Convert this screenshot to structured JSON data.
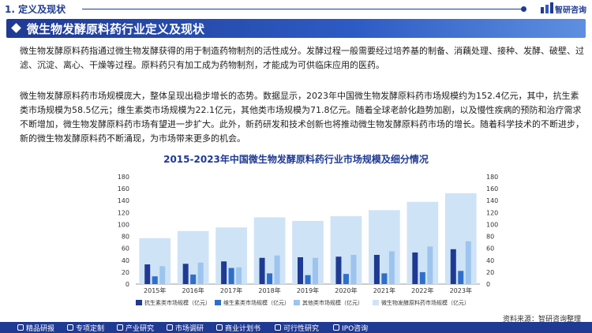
{
  "header": {
    "section_title": "1. 定义及现状",
    "brand": "智研咨询"
  },
  "banner": {
    "title": "微生物发酵原料药行业定义及现状"
  },
  "paragraphs": [
    "微生物发酵原料药指通过微生物发酵获得的用于制造药物制剂的活性成分。发酵过程一般需要经过培养基的制备、消藕处理、接种、发酵、破壁、过滤、沉淀、离心、干燥等过程。原料药只有加工成为药物制剂，才能成为可供临床应用的医药。",
    "微生物发酵原料药市场规模庞大，整体呈现出稳步增长的态势。数据显示，2023年中国微生物发酵原料药市场规模约为152.4亿元，其中，抗生素类市场规模为58.5亿元；维生素类市场规模为22.1亿元，其他类市场规模为71.8亿元。随着全球老龄化趋势加剧，以及慢性疾病的预防和治疗需求不断增加，微生物发酵原料药市场有望进一步扩大。此外，新药研发和技术创新也将推动微生物发酵原料药市场的增长。随着科学技术的不断进步，新的微生物发酵原料药不断涌现，为市场带来更多的机会。"
  ],
  "chart_data": {
    "type": "bar",
    "title": "2015-2023年中国微生物发酵原料药行业市场规模及细分情况",
    "categories": [
      "2015年",
      "2016年",
      "2017年",
      "2018年",
      "2019年",
      "2020年",
      "2021年",
      "2022年",
      "2023年"
    ],
    "series": [
      {
        "name": "抗生素类市场规模（亿元）",
        "axis": "left",
        "color": "#1f3a93",
        "values": [
          33,
          34,
          38,
          44,
          45,
          46,
          49,
          53,
          58.5
        ]
      },
      {
        "name": "维生素类市场规模（亿元）",
        "axis": "left",
        "color": "#2f6fc9",
        "values": [
          13,
          16,
          27,
          18,
          15,
          17,
          18,
          20,
          22.1
        ]
      },
      {
        "name": "其他类市场规模（亿元）",
        "axis": "left",
        "color": "#9cc4ee",
        "values": [
          30,
          36,
          28,
          48,
          44,
          49,
          55,
          63,
          71.8
        ]
      },
      {
        "name": "微生物发酵原料药市场规模（亿元）",
        "axis": "right",
        "color": "#cfe3f7",
        "values": [
          77,
          89,
          95,
          112,
          106,
          114,
          124,
          138,
          152.4
        ]
      }
    ],
    "ylim": [
      0,
      180
    ],
    "yticks": [
      0,
      20,
      40,
      60,
      80,
      100,
      120,
      140,
      160,
      180
    ],
    "ylim_right": [
      0,
      180
    ],
    "yticks_right": [
      0,
      20,
      40,
      60,
      80,
      100,
      120,
      140,
      160,
      180
    ],
    "grid": false,
    "legend_position": "bottom"
  },
  "source": "资料来源：智研咨询整理",
  "footer": {
    "items": [
      "精品研报",
      "专项定制",
      "产业研究",
      "市场调研",
      "商业计划书",
      "可行性研究",
      "IPO咨询"
    ]
  },
  "colors": {
    "primary": "#1f3a93",
    "accent": "#2d5bc4"
  }
}
